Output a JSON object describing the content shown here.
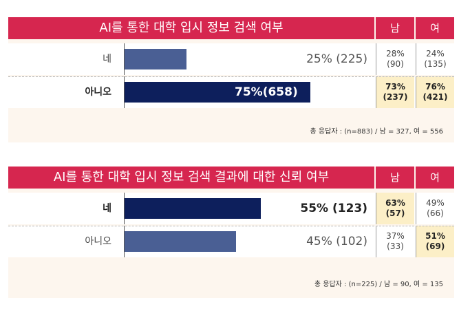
{
  "colors": {
    "header": "#d6264f",
    "bar_dark": "#0d1f5c",
    "bar_light": "#4a5f94",
    "highlight": "#fcefc7",
    "panel": "#fdf6ee"
  },
  "chart_data": [
    {
      "type": "bar",
      "title": "AI를 통한 대학 입시 정보 검색 여부",
      "col_headers": [
        "남",
        "여"
      ],
      "categories": [
        "네",
        "아니오"
      ],
      "values": [
        25,
        75
      ],
      "counts": [
        225,
        658
      ],
      "labels": [
        "25% (225)",
        "75%(658)"
      ],
      "bar_colors": [
        "#4a5f94",
        "#0d1f5c"
      ],
      "label_inside": [
        false,
        true
      ],
      "bold": [
        false,
        true
      ],
      "by_gender": {
        "male": [
          "28%",
          "(90)",
          "73%",
          "(237)"
        ],
        "female": [
          "24%",
          "(135)",
          "76%",
          "(421)"
        ]
      },
      "male_values": [
        28,
        73
      ],
      "male_counts": [
        90,
        237
      ],
      "female_values": [
        24,
        76
      ],
      "female_counts": [
        135,
        421
      ],
      "highlight": {
        "male": [
          false,
          true
        ],
        "female": [
          false,
          true
        ]
      },
      "footnote": "총 응답자 : (n=883) / 남 = 327, 여 = 556"
    },
    {
      "type": "bar",
      "title": "AI를 통한 대학 입시 정보 검색 결과에 대한 신뢰 여부",
      "col_headers": [
        "남",
        "여"
      ],
      "categories": [
        "네",
        "아니오"
      ],
      "values": [
        55,
        45
      ],
      "counts": [
        123,
        102
      ],
      "labels": [
        "55% (123)",
        "45% (102)"
      ],
      "bar_colors": [
        "#0d1f5c",
        "#4a5f94"
      ],
      "label_inside": [
        false,
        false
      ],
      "bold": [
        true,
        false
      ],
      "male_values": [
        63,
        37
      ],
      "male_counts": [
        57,
        33
      ],
      "female_values": [
        49,
        51
      ],
      "female_counts": [
        66,
        69
      ],
      "highlight": {
        "male": [
          true,
          false
        ],
        "female": [
          false,
          true
        ]
      },
      "footnote": "총 응답자 : (n=225) / 남 = 90, 여 = 135"
    }
  ]
}
